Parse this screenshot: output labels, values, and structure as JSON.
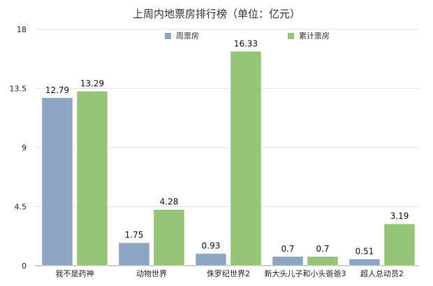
{
  "chart_data": {
    "type": "bar",
    "title": "上周内地票房排行榜（单位：亿元）",
    "categories": [
      "我不是药神",
      "动物世界",
      "侏罗纪世界2",
      "新大头儿子和小头爸爸3",
      "超人总动员2"
    ],
    "series": [
      {
        "name": "周票房",
        "color": "#8ea5c4",
        "values": [
          12.79,
          1.75,
          0.93,
          0.7,
          0.51
        ]
      },
      {
        "name": "累计票房",
        "color": "#95c576",
        "values": [
          13.29,
          4.28,
          16.33,
          0.7,
          3.19
        ]
      }
    ],
    "yticks": [
      "0",
      "4.5",
      "9",
      "13.5",
      "18"
    ],
    "ylim": [
      0,
      18
    ],
    "grid": true,
    "legend_position": "top-center",
    "xlabel": "",
    "ylabel": ""
  }
}
